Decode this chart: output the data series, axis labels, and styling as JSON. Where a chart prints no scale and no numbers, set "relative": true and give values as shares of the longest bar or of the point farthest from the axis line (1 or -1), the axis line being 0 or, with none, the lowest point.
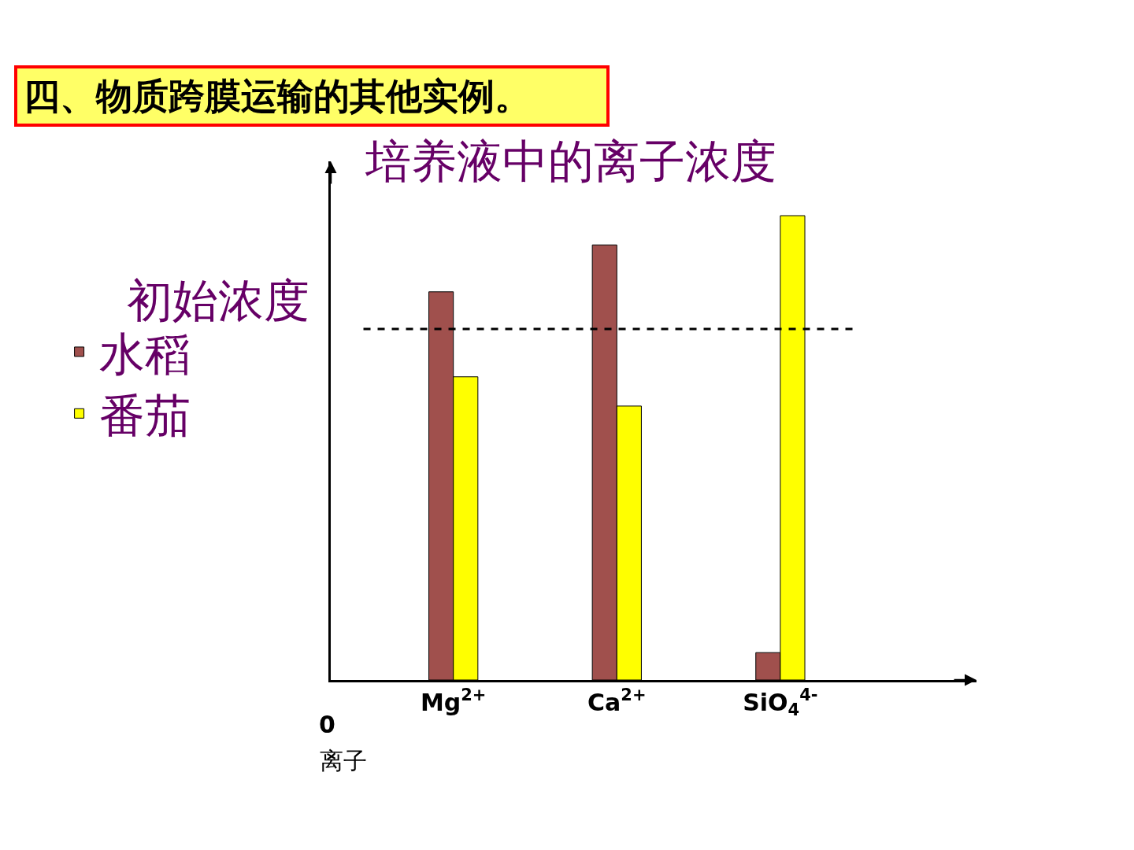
{
  "chart_data": {
    "type": "bar",
    "title": "四、物质跨膜运输的其他实例。",
    "ylabel": "培养液中的离子浓度",
    "xlabel": "离子",
    "relative": true,
    "categories": [
      "Mg$^{2+}$",
      "Ca$^{2+}$",
      "SiO$_{4}$$^{4-}$"
    ],
    "series": [
      {
        "name": "水稻",
        "color": "#a0504d",
        "values": [
          0.836,
          0.937,
          0.059
        ]
      },
      {
        "name": "番茄",
        "color": "#ffff00",
        "values": [
          0.653,
          0.59,
          1.0
        ]
      }
    ],
    "ref_lines": [
      {
        "axis": "y",
        "value": 0.756,
        "label": "初始浓度",
        "color": "#000000",
        "line_style": "dashed"
      }
    ],
    "annotations": [
      "0"
    ],
    "legend": "left"
  }
}
